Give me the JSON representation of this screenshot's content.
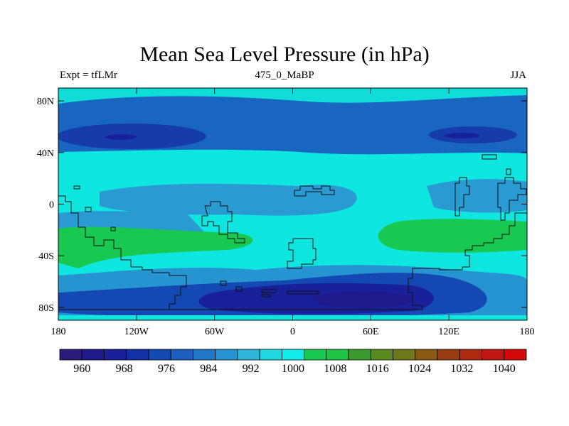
{
  "title": "Mean Sea Level Pressure (in hPa)",
  "left_label": "Expt = tfLMr",
  "center_label": "475_0_MaBP",
  "right_label": "JJA",
  "chart_data": {
    "type": "map-contour",
    "variable": "Mean Sea Level Pressure",
    "units": "hPa",
    "x_ticks": [
      "180",
      "120W",
      "60W",
      "0",
      "60E",
      "120E",
      "180"
    ],
    "y_ticks": [
      "80N",
      "40N",
      "0",
      "40S",
      "80S"
    ],
    "colorbar": {
      "levels": [
        960,
        964,
        968,
        972,
        976,
        980,
        984,
        988,
        992,
        996,
        1000,
        1004,
        1008,
        1012,
        1016,
        1020,
        1024,
        1028,
        1032,
        1036,
        1040
      ],
      "labels": [
        "960",
        "968",
        "976",
        "984",
        "992",
        "1000",
        "1008",
        "1016",
        "1024",
        "1032",
        "1040"
      ],
      "colors": [
        "#2a1a7a",
        "#1e1a8c",
        "#18209a",
        "#1430a6",
        "#1448b2",
        "#1c5ebe",
        "#2078c6",
        "#2694d0",
        "#30b4d8",
        "#20d8e0",
        "#10ecec",
        "#18c850",
        "#22c448",
        "#3a9a2c",
        "#5a8a20",
        "#6e7818",
        "#8a5a14",
        "#9a3c12",
        "#ae2a10",
        "#c01810",
        "#d40808"
      ]
    },
    "map_band_colors": {
      "polar_north": "#10ddd8",
      "midlat_low": "#1866bf",
      "deep_low": "#163caa",
      "tropics": "#10e6e0",
      "equatorial_low": "#2a9ad2",
      "subtropical_high": "#18c850",
      "southern_low": "#1448b2",
      "southern_deep": "#18209a"
    }
  }
}
